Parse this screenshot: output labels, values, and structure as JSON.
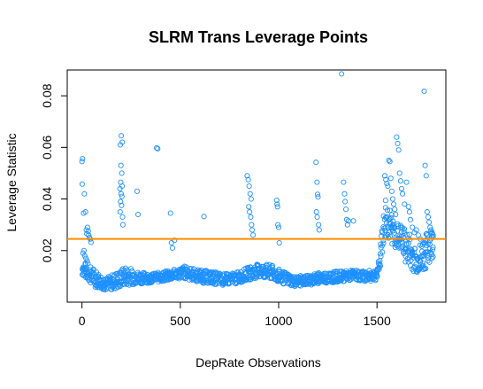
{
  "chart_data": {
    "type": "scatter",
    "title": "SLRM Trans Leverage Points",
    "xlabel": "DepRate Observations",
    "ylabel": "Leverage Statistic",
    "xlim": [
      -75,
      1850
    ],
    "ylim": [
      0.0,
      0.09
    ],
    "x_ticks": [
      0,
      500,
      1000,
      1500
    ],
    "x_tick_labels": [
      "0",
      "500",
      "1000",
      "1500"
    ],
    "y_ticks": [
      0.02,
      0.04,
      0.06,
      0.08
    ],
    "y_tick_labels": [
      "0.02",
      "0.04",
      "0.06",
      "0.08"
    ],
    "point_color": "#1e90ff",
    "threshold": {
      "value": 0.0245,
      "color": "#ff8c00"
    },
    "grid": false,
    "legend": "none",
    "series": [
      {
        "points": [
          [
            0,
            0.0545
          ],
          [
            3,
            0.0556
          ],
          [
            1,
            0.0458
          ],
          [
            12,
            0.042
          ],
          [
            8,
            0.0345
          ],
          [
            18,
            0.035
          ],
          [
            22,
            0.028
          ],
          [
            25,
            0.0265
          ],
          [
            28,
            0.029
          ],
          [
            32,
            0.0275
          ],
          [
            34,
            0.026
          ],
          [
            38,
            0.025
          ],
          [
            42,
            0.0245
          ],
          [
            46,
            0.0232
          ],
          [
            5,
            0.019
          ],
          [
            10,
            0.02
          ],
          [
            14,
            0.018
          ],
          [
            20,
            0.017
          ],
          [
            26,
            0.016
          ],
          [
            30,
            0.015
          ],
          [
            200,
            0.0645
          ],
          [
            205,
            0.062
          ],
          [
            195,
            0.061
          ],
          [
            198,
            0.053
          ],
          [
            202,
            0.05
          ],
          [
            197,
            0.0465
          ],
          [
            204,
            0.045
          ],
          [
            193,
            0.044
          ],
          [
            199,
            0.042
          ],
          [
            203,
            0.041
          ],
          [
            196,
            0.039
          ],
          [
            201,
            0.0375
          ],
          [
            194,
            0.035
          ],
          [
            206,
            0.033
          ],
          [
            208,
            0.03
          ],
          [
            280,
            0.043
          ],
          [
            285,
            0.034
          ],
          [
            380,
            0.0598
          ],
          [
            385,
            0.0595
          ],
          [
            450,
            0.0345
          ],
          [
            470,
            0.024
          ],
          [
            455,
            0.023
          ],
          [
            460,
            0.021
          ],
          [
            620,
            0.0332
          ],
          [
            840,
            0.049
          ],
          [
            845,
            0.0475
          ],
          [
            850,
            0.045
          ],
          [
            855,
            0.042
          ],
          [
            860,
            0.04
          ],
          [
            848,
            0.037
          ],
          [
            852,
            0.035
          ],
          [
            858,
            0.033
          ],
          [
            862,
            0.03
          ],
          [
            865,
            0.028
          ],
          [
            870,
            0.026
          ],
          [
            990,
            0.0395
          ],
          [
            992,
            0.038
          ],
          [
            994,
            0.037
          ],
          [
            996,
            0.03
          ],
          [
            1000,
            0.029
          ],
          [
            1003,
            0.023
          ],
          [
            1190,
            0.0542
          ],
          [
            1195,
            0.0465
          ],
          [
            1198,
            0.0418
          ],
          [
            1200,
            0.0408
          ],
          [
            1192,
            0.035
          ],
          [
            1196,
            0.033
          ],
          [
            1203,
            0.03
          ],
          [
            1206,
            0.028
          ],
          [
            1320,
            0.0885
          ],
          [
            1330,
            0.0465
          ],
          [
            1335,
            0.042
          ],
          [
            1338,
            0.039
          ],
          [
            1342,
            0.036
          ],
          [
            1346,
            0.032
          ],
          [
            1350,
            0.03
          ],
          [
            1355,
            0.0315
          ],
          [
            1380,
            0.0315
          ],
          [
            1540,
            0.049
          ],
          [
            1545,
            0.0475
          ],
          [
            1550,
            0.046
          ],
          [
            1555,
            0.045
          ],
          [
            1560,
            0.055
          ],
          [
            1565,
            0.0545
          ],
          [
            1570,
            0.048
          ],
          [
            1575,
            0.043
          ],
          [
            1580,
            0.04
          ],
          [
            1585,
            0.038
          ],
          [
            1590,
            0.036
          ],
          [
            1595,
            0.034
          ],
          [
            1600,
            0.064
          ],
          [
            1605,
            0.0615
          ],
          [
            1610,
            0.059
          ],
          [
            1615,
            0.05
          ],
          [
            1620,
            0.047
          ],
          [
            1625,
            0.044
          ],
          [
            1630,
            0.042
          ],
          [
            1640,
            0.038
          ],
          [
            1650,
            0.0465
          ],
          [
            1660,
            0.037
          ],
          [
            1665,
            0.035
          ],
          [
            1670,
            0.032
          ],
          [
            1680,
            0.029
          ],
          [
            1690,
            0.027
          ],
          [
            1700,
            0.028
          ],
          [
            1710,
            0.026
          ],
          [
            1720,
            0.0245
          ],
          [
            1740,
            0.0818
          ],
          [
            1745,
            0.053
          ],
          [
            1750,
            0.049
          ],
          [
            1755,
            0.035
          ],
          [
            1760,
            0.033
          ],
          [
            1765,
            0.031
          ],
          [
            1770,
            0.029
          ],
          [
            1775,
            0.028
          ],
          [
            1780,
            0.027
          ],
          [
            1785,
            0.026
          ],
          [
            1748,
            0.024
          ],
          [
            1752,
            0.022
          ]
        ]
      }
    ],
    "dense_band": {
      "x_range": [
        0,
        1785
      ],
      "y_low": 0.005,
      "y_high": 0.015,
      "segments": [
        [
          0,
          0.01,
          0.016
        ],
        [
          60,
          0.006,
          0.013
        ],
        [
          120,
          0.0045,
          0.0095
        ],
        [
          180,
          0.005,
          0.012
        ],
        [
          220,
          0.0065,
          0.014
        ],
        [
          280,
          0.007,
          0.012
        ],
        [
          350,
          0.0075,
          0.011
        ],
        [
          420,
          0.008,
          0.012
        ],
        [
          480,
          0.009,
          0.013
        ],
        [
          520,
          0.009,
          0.014
        ],
        [
          600,
          0.0075,
          0.0125
        ],
        [
          660,
          0.007,
          0.012
        ],
        [
          720,
          0.0065,
          0.011
        ],
        [
          780,
          0.007,
          0.0115
        ],
        [
          840,
          0.0085,
          0.0135
        ],
        [
          900,
          0.0095,
          0.015
        ],
        [
          960,
          0.0085,
          0.0145
        ],
        [
          1020,
          0.007,
          0.012
        ],
        [
          1080,
          0.006,
          0.01
        ],
        [
          1140,
          0.0065,
          0.0105
        ],
        [
          1200,
          0.007,
          0.0115
        ],
        [
          1260,
          0.0075,
          0.012
        ],
        [
          1320,
          0.008,
          0.012
        ],
        [
          1380,
          0.0085,
          0.0125
        ],
        [
          1440,
          0.008,
          0.012
        ],
        [
          1500,
          0.0085,
          0.013
        ],
        [
          1540,
          0.025,
          0.042
        ],
        [
          1580,
          0.022,
          0.032
        ],
        [
          1620,
          0.019,
          0.03
        ],
        [
          1660,
          0.013,
          0.027
        ],
        [
          1700,
          0.011,
          0.02
        ],
        [
          1740,
          0.012,
          0.026
        ],
        [
          1785,
          0.017,
          0.03
        ]
      ]
    }
  }
}
